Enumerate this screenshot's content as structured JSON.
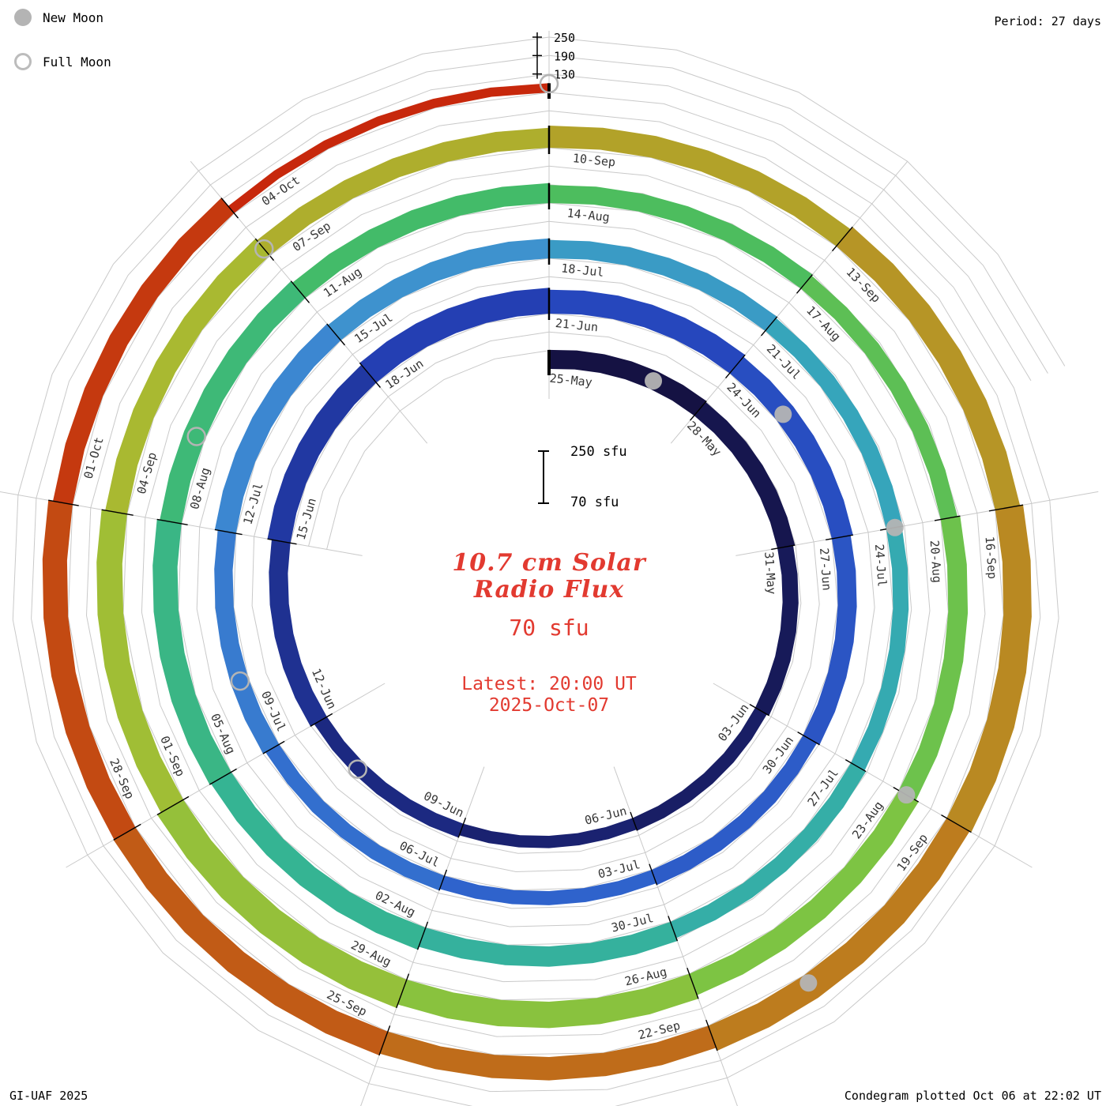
{
  "header": {
    "period_label": "Period: 27 days"
  },
  "legend": {
    "new_moon": "New Moon",
    "full_moon": "Full Moon"
  },
  "footer": {
    "left": "GI-UAF 2025",
    "right": "Condegram plotted Oct 06 at 22:02 UT"
  },
  "center": {
    "scale_top": "250 sfu",
    "scale_bottom": "70 sfu",
    "title_line1": "10.7 cm Solar",
    "title_line2": "Radio Flux",
    "current_value": "70 sfu",
    "latest_line1": "Latest: 20:00 UT",
    "latest_line2": "2025-Oct-07"
  },
  "chart_data": {
    "type": "bar",
    "layout": "spiral-condegram",
    "title": "10.7 cm Solar Radio Flux",
    "units": "sfu",
    "period_days": 27,
    "segment_days": 3,
    "start_label": "25-May",
    "end_label": "07-Oct",
    "latest": {
      "value": 70,
      "time": "20:00 UT",
      "date": "2025-Oct-07"
    },
    "flux_range": [
      70,
      250
    ],
    "flux_ticks": [
      130,
      190,
      250
    ],
    "segments": [
      {
        "label": "25-May",
        "flux": 132
      },
      {
        "label": "28-May",
        "flux": 128
      },
      {
        "label": "31-May",
        "flux": 122
      },
      {
        "label": "03-Jun",
        "flux": 114
      },
      {
        "label": "06-Jun",
        "flux": 110
      },
      {
        "label": "09-Jun",
        "flux": 118
      },
      {
        "label": "12-Jun",
        "flux": 132
      },
      {
        "label": "15-Jun",
        "flux": 146
      },
      {
        "label": "18-Jun",
        "flux": 154
      },
      {
        "label": "21-Jun",
        "flux": 148
      },
      {
        "label": "24-Jun",
        "flux": 140
      },
      {
        "label": "27-Jun",
        "flux": 132
      },
      {
        "label": "30-Jun",
        "flux": 122
      },
      {
        "label": "03-Jul",
        "flux": 116
      },
      {
        "label": "06-Jul",
        "flux": 121
      },
      {
        "label": "09-Jul",
        "flux": 130
      },
      {
        "label": "12-Jul",
        "flux": 140
      },
      {
        "label": "15-Jul",
        "flux": 135
      },
      {
        "label": "18-Jul",
        "flux": 130
      },
      {
        "label": "21-Jul",
        "flux": 125
      },
      {
        "label": "24-Jul",
        "flux": 121
      },
      {
        "label": "27-Jul",
        "flux": 126
      },
      {
        "label": "30-Jul",
        "flux": 136
      },
      {
        "label": "02-Aug",
        "flux": 146
      },
      {
        "label": "05-Aug",
        "flux": 151
      },
      {
        "label": "08-Aug",
        "flux": 142
      },
      {
        "label": "11-Aug",
        "flux": 135
      },
      {
        "label": "14-Aug",
        "flux": 129
      },
      {
        "label": "17-Aug",
        "flux": 125
      },
      {
        "label": "20-Aug",
        "flux": 134
      },
      {
        "label": "23-Aug",
        "flux": 144
      },
      {
        "label": "26-Aug",
        "flux": 156
      },
      {
        "label": "29-Aug",
        "flux": 168
      },
      {
        "label": "01-Sep",
        "flux": 154
      },
      {
        "label": "04-Sep",
        "flux": 142
      },
      {
        "label": "07-Sep",
        "flux": 135
      },
      {
        "label": "10-Sep",
        "flux": 142
      },
      {
        "label": "13-Sep",
        "flux": 152
      },
      {
        "label": "16-Sep",
        "flux": 162
      },
      {
        "label": "19-Sep",
        "flux": 156
      },
      {
        "label": "22-Sep",
        "flux": 146
      },
      {
        "label": "25-Sep",
        "flux": 152
      },
      {
        "label": "28-Sep",
        "flux": 150
      },
      {
        "label": "01-Oct",
        "flux": 135
      },
      {
        "label": "04-Oct",
        "flux": 100
      }
    ],
    "moons": [
      {
        "type": "new",
        "label": "27-May",
        "day": 2
      },
      {
        "type": "full",
        "label": "11-Jun",
        "day": 17
      },
      {
        "type": "new",
        "label": "25-Jun",
        "day": 31
      },
      {
        "type": "full",
        "label": "10-Jul",
        "day": 46
      },
      {
        "type": "new",
        "label": "24-Jul",
        "day": 60
      },
      {
        "type": "full",
        "label": "09-Aug",
        "day": 76
      },
      {
        "type": "new",
        "label": "23-Aug",
        "day": 90
      },
      {
        "type": "full",
        "label": "07-Sep",
        "day": 105
      },
      {
        "type": "new",
        "label": "21-Sep",
        "day": 119
      },
      {
        "type": "full",
        "label": "07-Oct",
        "day": 135
      }
    ],
    "palette": [
      {
        "pos": 0.0,
        "color": "#14103d"
      },
      {
        "pos": 0.1,
        "color": "#1a2270"
      },
      {
        "pos": 0.2,
        "color": "#2543bb"
      },
      {
        "pos": 0.3,
        "color": "#2f63cc"
      },
      {
        "pos": 0.38,
        "color": "#3f8ed2"
      },
      {
        "pos": 0.44,
        "color": "#35a8b8"
      },
      {
        "pos": 0.52,
        "color": "#35b494"
      },
      {
        "pos": 0.6,
        "color": "#45bc62"
      },
      {
        "pos": 0.68,
        "color": "#7fc442"
      },
      {
        "pos": 0.76,
        "color": "#a8bd32"
      },
      {
        "pos": 0.82,
        "color": "#b49d28"
      },
      {
        "pos": 0.88,
        "color": "#bd7b1e"
      },
      {
        "pos": 0.93,
        "color": "#c25514"
      },
      {
        "pos": 1.0,
        "color": "#c8200a"
      }
    ],
    "colors": {
      "grid": "#c9c9c9",
      "tick_black": "#000000",
      "moon_gray": "#b4b4b4",
      "label_gray": "#353535",
      "accent_red": "#e23a30"
    }
  }
}
